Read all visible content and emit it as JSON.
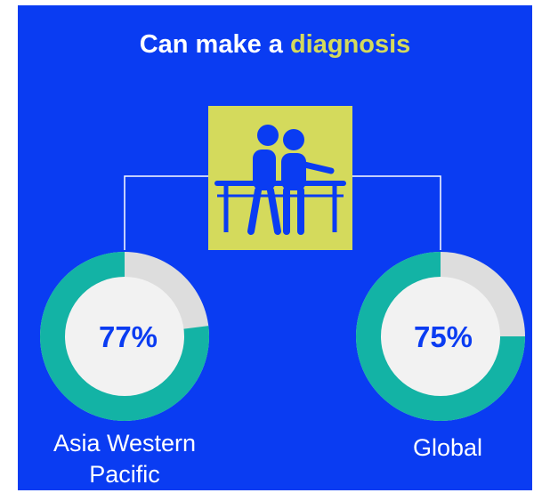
{
  "title": {
    "prefix": "Can make a",
    "highlight": "diagnosis"
  },
  "icon": "people-walking-parallel-bars-icon",
  "colors": {
    "background": "#0a3cf2",
    "title_highlight": "#d4da5c",
    "icon_box": "#d4da5c",
    "icon_fill": "#0a3cf2",
    "donut_fill": "#13b3a5",
    "donut_remainder": "#dddddd",
    "donut_center": "#f2f2f2",
    "value_text": "#0a3cf2",
    "connector": "#ffffff"
  },
  "chart_data": {
    "type": "pie",
    "subtype": "donut",
    "title": "Can make a diagnosis",
    "series": [
      {
        "label_lines": [
          "Asia Western",
          "Pacific"
        ],
        "value": 77,
        "value_label": "77%"
      },
      {
        "label_lines": [
          "Global"
        ],
        "value": 75,
        "value_label": "75%"
      }
    ],
    "max": 100
  }
}
